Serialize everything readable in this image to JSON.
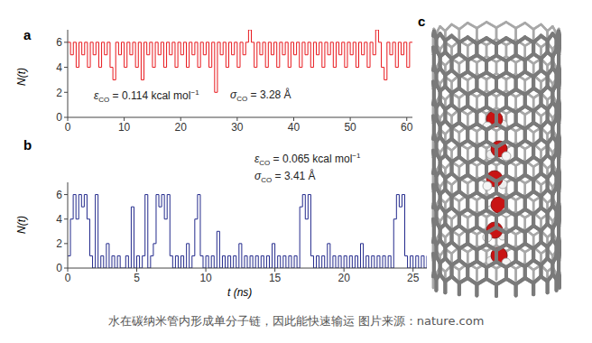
{
  "chart_data": [
    {
      "panel_label": "a",
      "type": "line",
      "y_label": "N(t)",
      "xlim": [
        0,
        61
      ],
      "xticks": [
        0,
        10,
        20,
        30,
        40,
        50,
        60
      ],
      "ylim": [
        0,
        7
      ],
      "yticks": [
        0,
        2,
        4,
        6
      ],
      "grid": false,
      "annotations": [
        {
          "symbol": "ε",
          "subscript": "CO",
          "text": " = 0.114 kcal mol",
          "superscript": "−1"
        },
        {
          "symbol": "σ",
          "subscript": "CO",
          "text": " = 3.28 Å"
        }
      ],
      "series": [
        {
          "color": "#e8191e",
          "line_style": "step",
          "x": [
            0,
            0.5,
            1,
            1.5,
            2,
            2.5,
            3,
            3.5,
            4,
            4.5,
            5,
            5.5,
            6,
            6.5,
            7,
            7.5,
            8,
            8.5,
            9,
            9.5,
            10,
            10.5,
            11,
            11.5,
            12,
            12.5,
            13,
            13.5,
            14,
            14.5,
            15,
            15.5,
            16,
            16.5,
            17,
            17.5,
            18,
            18.5,
            19,
            19.5,
            20,
            20.5,
            21,
            21.5,
            22,
            22.5,
            23,
            23.5,
            24,
            24.5,
            25,
            25.5,
            26,
            26.5,
            27,
            27.5,
            28,
            28.5,
            29,
            29.5,
            30,
            30.5,
            31,
            31.5,
            32,
            32.5,
            33,
            33.5,
            34,
            34.5,
            35,
            35.5,
            36,
            36.5,
            37,
            37.5,
            38,
            38.5,
            39,
            39.5,
            40,
            40.5,
            41,
            41.5,
            42,
            42.5,
            43,
            43.5,
            44,
            44.5,
            45,
            45.5,
            46,
            46.5,
            47,
            47.5,
            48,
            48.5,
            49,
            49.5,
            50,
            50.5,
            51,
            51.5,
            52,
            52.5,
            53,
            53.5,
            54,
            54.5,
            55,
            55.5,
            56,
            56.5,
            57,
            57.5,
            58,
            58.5,
            59,
            59.5,
            60,
            60.5,
            61
          ],
          "values": [
            6,
            5,
            6,
            4,
            6,
            5,
            6,
            4,
            6,
            5,
            6,
            4,
            6,
            5,
            6,
            4,
            3,
            6,
            5,
            6,
            4,
            6,
            5,
            6,
            4,
            6,
            3,
            6,
            5,
            6,
            4,
            6,
            5,
            6,
            4,
            6,
            5,
            6,
            4,
            6,
            5,
            6,
            4,
            6,
            5,
            6,
            4,
            6,
            5,
            6,
            4,
            6,
            2,
            6,
            5,
            6,
            4,
            6,
            5,
            6,
            4,
            6,
            5,
            6,
            7,
            6,
            4,
            6,
            5,
            6,
            4,
            6,
            5,
            6,
            4,
            6,
            5,
            6,
            4,
            6,
            5,
            6,
            4,
            6,
            5,
            6,
            4,
            6,
            5,
            6,
            4,
            6,
            5,
            6,
            4,
            6,
            5,
            6,
            4,
            6,
            5,
            6,
            4,
            6,
            5,
            6,
            4,
            6,
            5,
            7,
            6,
            4,
            3,
            6,
            5,
            6,
            4,
            6,
            5,
            6,
            4,
            6,
            6
          ]
        }
      ]
    },
    {
      "panel_label": "b",
      "type": "line",
      "y_label": "N(t)",
      "x_label": "t (ns)",
      "xlim": [
        0,
        26
      ],
      "xticks": [
        0,
        5,
        10,
        15,
        20,
        25
      ],
      "ylim": [
        0,
        7
      ],
      "yticks": [
        0,
        2,
        4,
        6
      ],
      "grid": false,
      "annotations": [
        {
          "symbol": "ε",
          "subscript": "CO",
          "text": " = 0.065 kcal mol",
          "superscript": "−1"
        },
        {
          "symbol": "σ",
          "subscript": "CO",
          "text": " = 3.41 Å"
        }
      ],
      "series": [
        {
          "color": "#232a8c",
          "line_style": "step",
          "x": [
            0,
            0.2,
            0.4,
            0.6,
            0.8,
            1,
            1.2,
            1.4,
            1.6,
            1.8,
            2,
            2.2,
            2.4,
            2.6,
            2.8,
            3,
            3.2,
            3.4,
            3.6,
            3.8,
            4,
            4.2,
            4.4,
            4.6,
            4.8,
            5,
            5.2,
            5.4,
            5.6,
            5.8,
            6,
            6.2,
            6.4,
            6.6,
            6.8,
            7,
            7.2,
            7.4,
            7.6,
            7.8,
            8,
            8.2,
            8.4,
            8.6,
            8.8,
            9,
            9.2,
            9.4,
            9.6,
            9.8,
            10,
            10.2,
            10.4,
            10.6,
            10.8,
            11,
            11.2,
            11.4,
            11.6,
            11.8,
            12,
            12.2,
            12.4,
            12.6,
            12.8,
            13,
            13.2,
            13.4,
            13.6,
            13.8,
            14,
            14.2,
            14.4,
            14.6,
            14.8,
            15,
            15.2,
            15.4,
            15.6,
            15.8,
            16,
            16.2,
            16.4,
            16.6,
            16.8,
            17,
            17.2,
            17.4,
            17.6,
            17.8,
            18,
            18.2,
            18.4,
            18.6,
            18.8,
            19,
            19.2,
            19.4,
            19.6,
            19.8,
            20,
            20.2,
            20.4,
            20.6,
            20.8,
            21,
            21.2,
            21.4,
            21.6,
            21.8,
            22,
            22.2,
            22.4,
            22.6,
            22.8,
            23,
            23.2,
            23.4,
            23.6,
            23.8,
            24,
            24.2,
            24.4,
            24.6,
            24.8,
            25,
            25.2,
            25.4,
            25.6,
            25.8,
            26
          ],
          "values": [
            1,
            4,
            6,
            4,
            6,
            5,
            6,
            4,
            1,
            0,
            6,
            0,
            1,
            0,
            2,
            0,
            1,
            0,
            1,
            0,
            0,
            1,
            0,
            5,
            0,
            1,
            0,
            1,
            6,
            0,
            1,
            2,
            6,
            5,
            6,
            4,
            6,
            1,
            0,
            1,
            0,
            1,
            0,
            2,
            0,
            1,
            4,
            6,
            1,
            0,
            1,
            0,
            1,
            0,
            3,
            0,
            1,
            0,
            1,
            0,
            1,
            0,
            2,
            0,
            1,
            0,
            1,
            0,
            1,
            0,
            1,
            0,
            1,
            0,
            2,
            0,
            1,
            0,
            1,
            0,
            1,
            0,
            1,
            0,
            5,
            6,
            4,
            6,
            1,
            0,
            1,
            0,
            1,
            0,
            2,
            0,
            1,
            0,
            1,
            0,
            1,
            0,
            1,
            0,
            1,
            0,
            2,
            0,
            1,
            0,
            1,
            0,
            1,
            0,
            1,
            0,
            1,
            0,
            4,
            6,
            5,
            6,
            1,
            0,
            1,
            0,
            1,
            0,
            1,
            0,
            1
          ]
        }
      ]
    }
  ],
  "diagram": {
    "panel_label": "c"
  },
  "caption": "水在碳纳米管内形成单分子链，因此能快速输运 图片来源：nature.com"
}
